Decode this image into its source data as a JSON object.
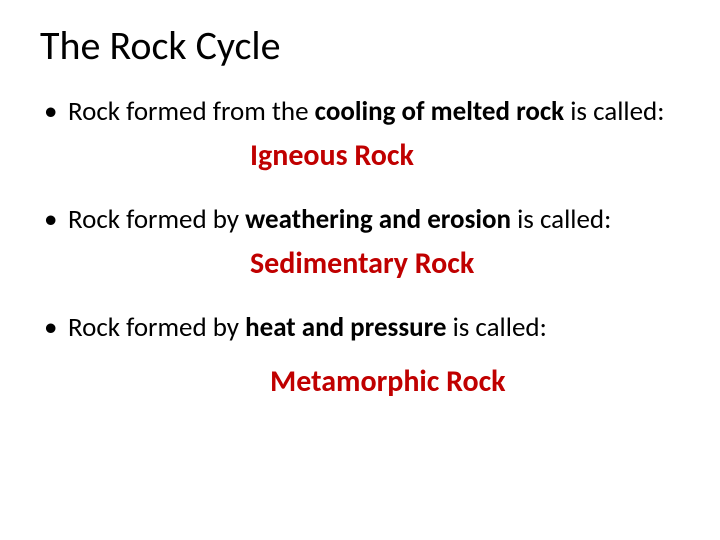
{
  "title": "The Rock Cycle",
  "colors": {
    "text": "#000000",
    "answer": "#c00000",
    "background": "#ffffff"
  },
  "typography": {
    "title_fontsize_pt": 40,
    "body_fontsize_pt": 27,
    "answer_fontsize_pt": 30,
    "font_family": "Calibri"
  },
  "items": [
    {
      "lead": "Rock formed from the ",
      "emph": "cooling of melted rock",
      "tail": " is called:",
      "answer": "Igneous Rock"
    },
    {
      "lead": "Rock formed by ",
      "emph": "weathering and erosion",
      "tail": " is called:",
      "answer": "Sedimentary Rock"
    },
    {
      "lead": "Rock formed by ",
      "emph": "heat and pressure",
      "tail": " is called:",
      "answer": "Metamorphic Rock"
    }
  ]
}
